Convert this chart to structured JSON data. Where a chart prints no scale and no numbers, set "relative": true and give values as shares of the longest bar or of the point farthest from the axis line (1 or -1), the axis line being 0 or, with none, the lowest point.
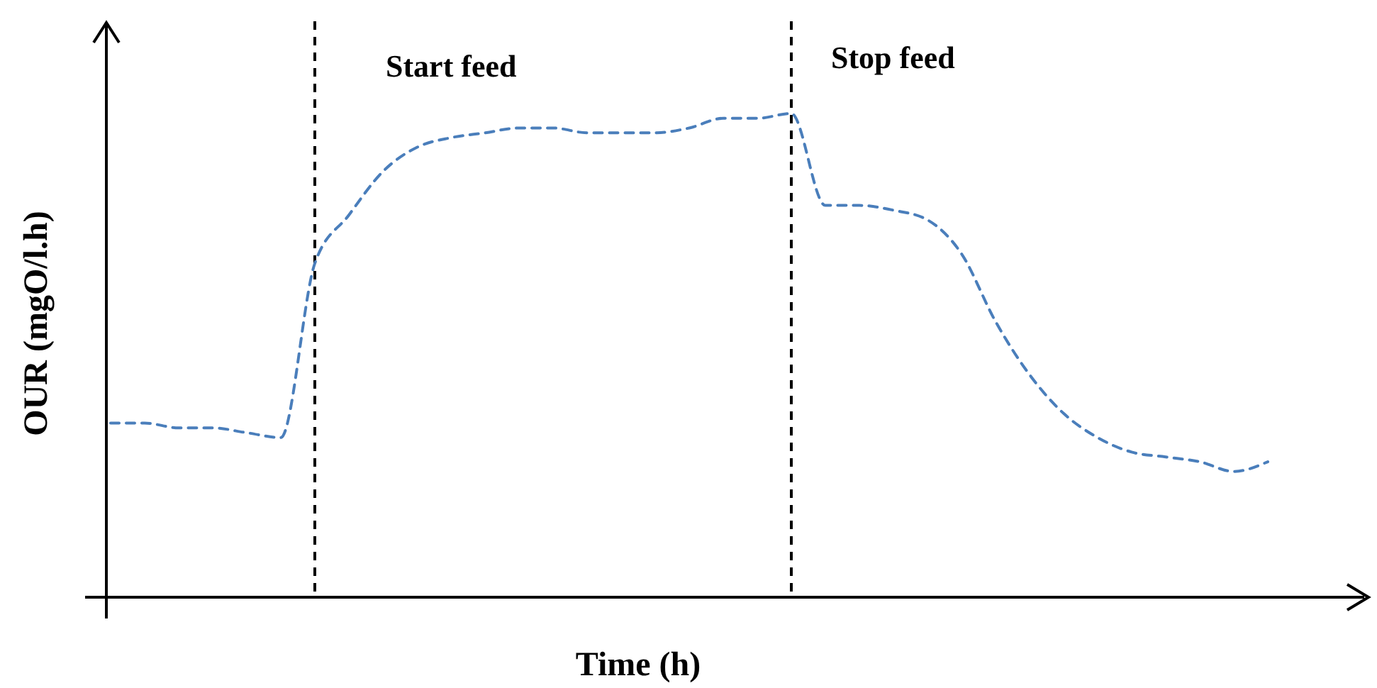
{
  "chart_data": {
    "type": "line",
    "relative": true,
    "xlabel": "Time (h)",
    "ylabel": "OUR (mgO/l.h)",
    "line_style": "dashed",
    "marker": "none",
    "annotations": [
      "Start feed",
      "Stop feed"
    ],
    "categories": [
      null,
      null,
      null,
      null,
      null,
      null,
      null,
      null,
      null,
      null,
      null,
      null,
      null,
      null,
      null,
      null,
      null,
      null,
      null,
      null,
      null,
      null,
      null,
      null,
      null,
      null,
      null,
      null,
      null,
      null,
      null,
      null,
      null,
      null,
      null
    ],
    "series": [
      {
        "color": "#4a7ebb",
        "values": [
          0.36,
          0.36,
          0.35,
          0.35,
          0.34,
          0.33,
          0.69,
          0.79,
          0.88,
          0.93,
          0.95,
          0.96,
          0.97,
          0.97,
          0.96,
          0.96,
          0.96,
          0.97,
          0.99,
          0.99,
          1,
          0.81,
          0.81,
          0.8,
          0.78,
          0.71,
          0.57,
          0.46,
          0.38,
          0.33,
          0.3,
          0.29,
          0.28,
          0.26,
          0.28
        ]
      }
    ]
  }
}
